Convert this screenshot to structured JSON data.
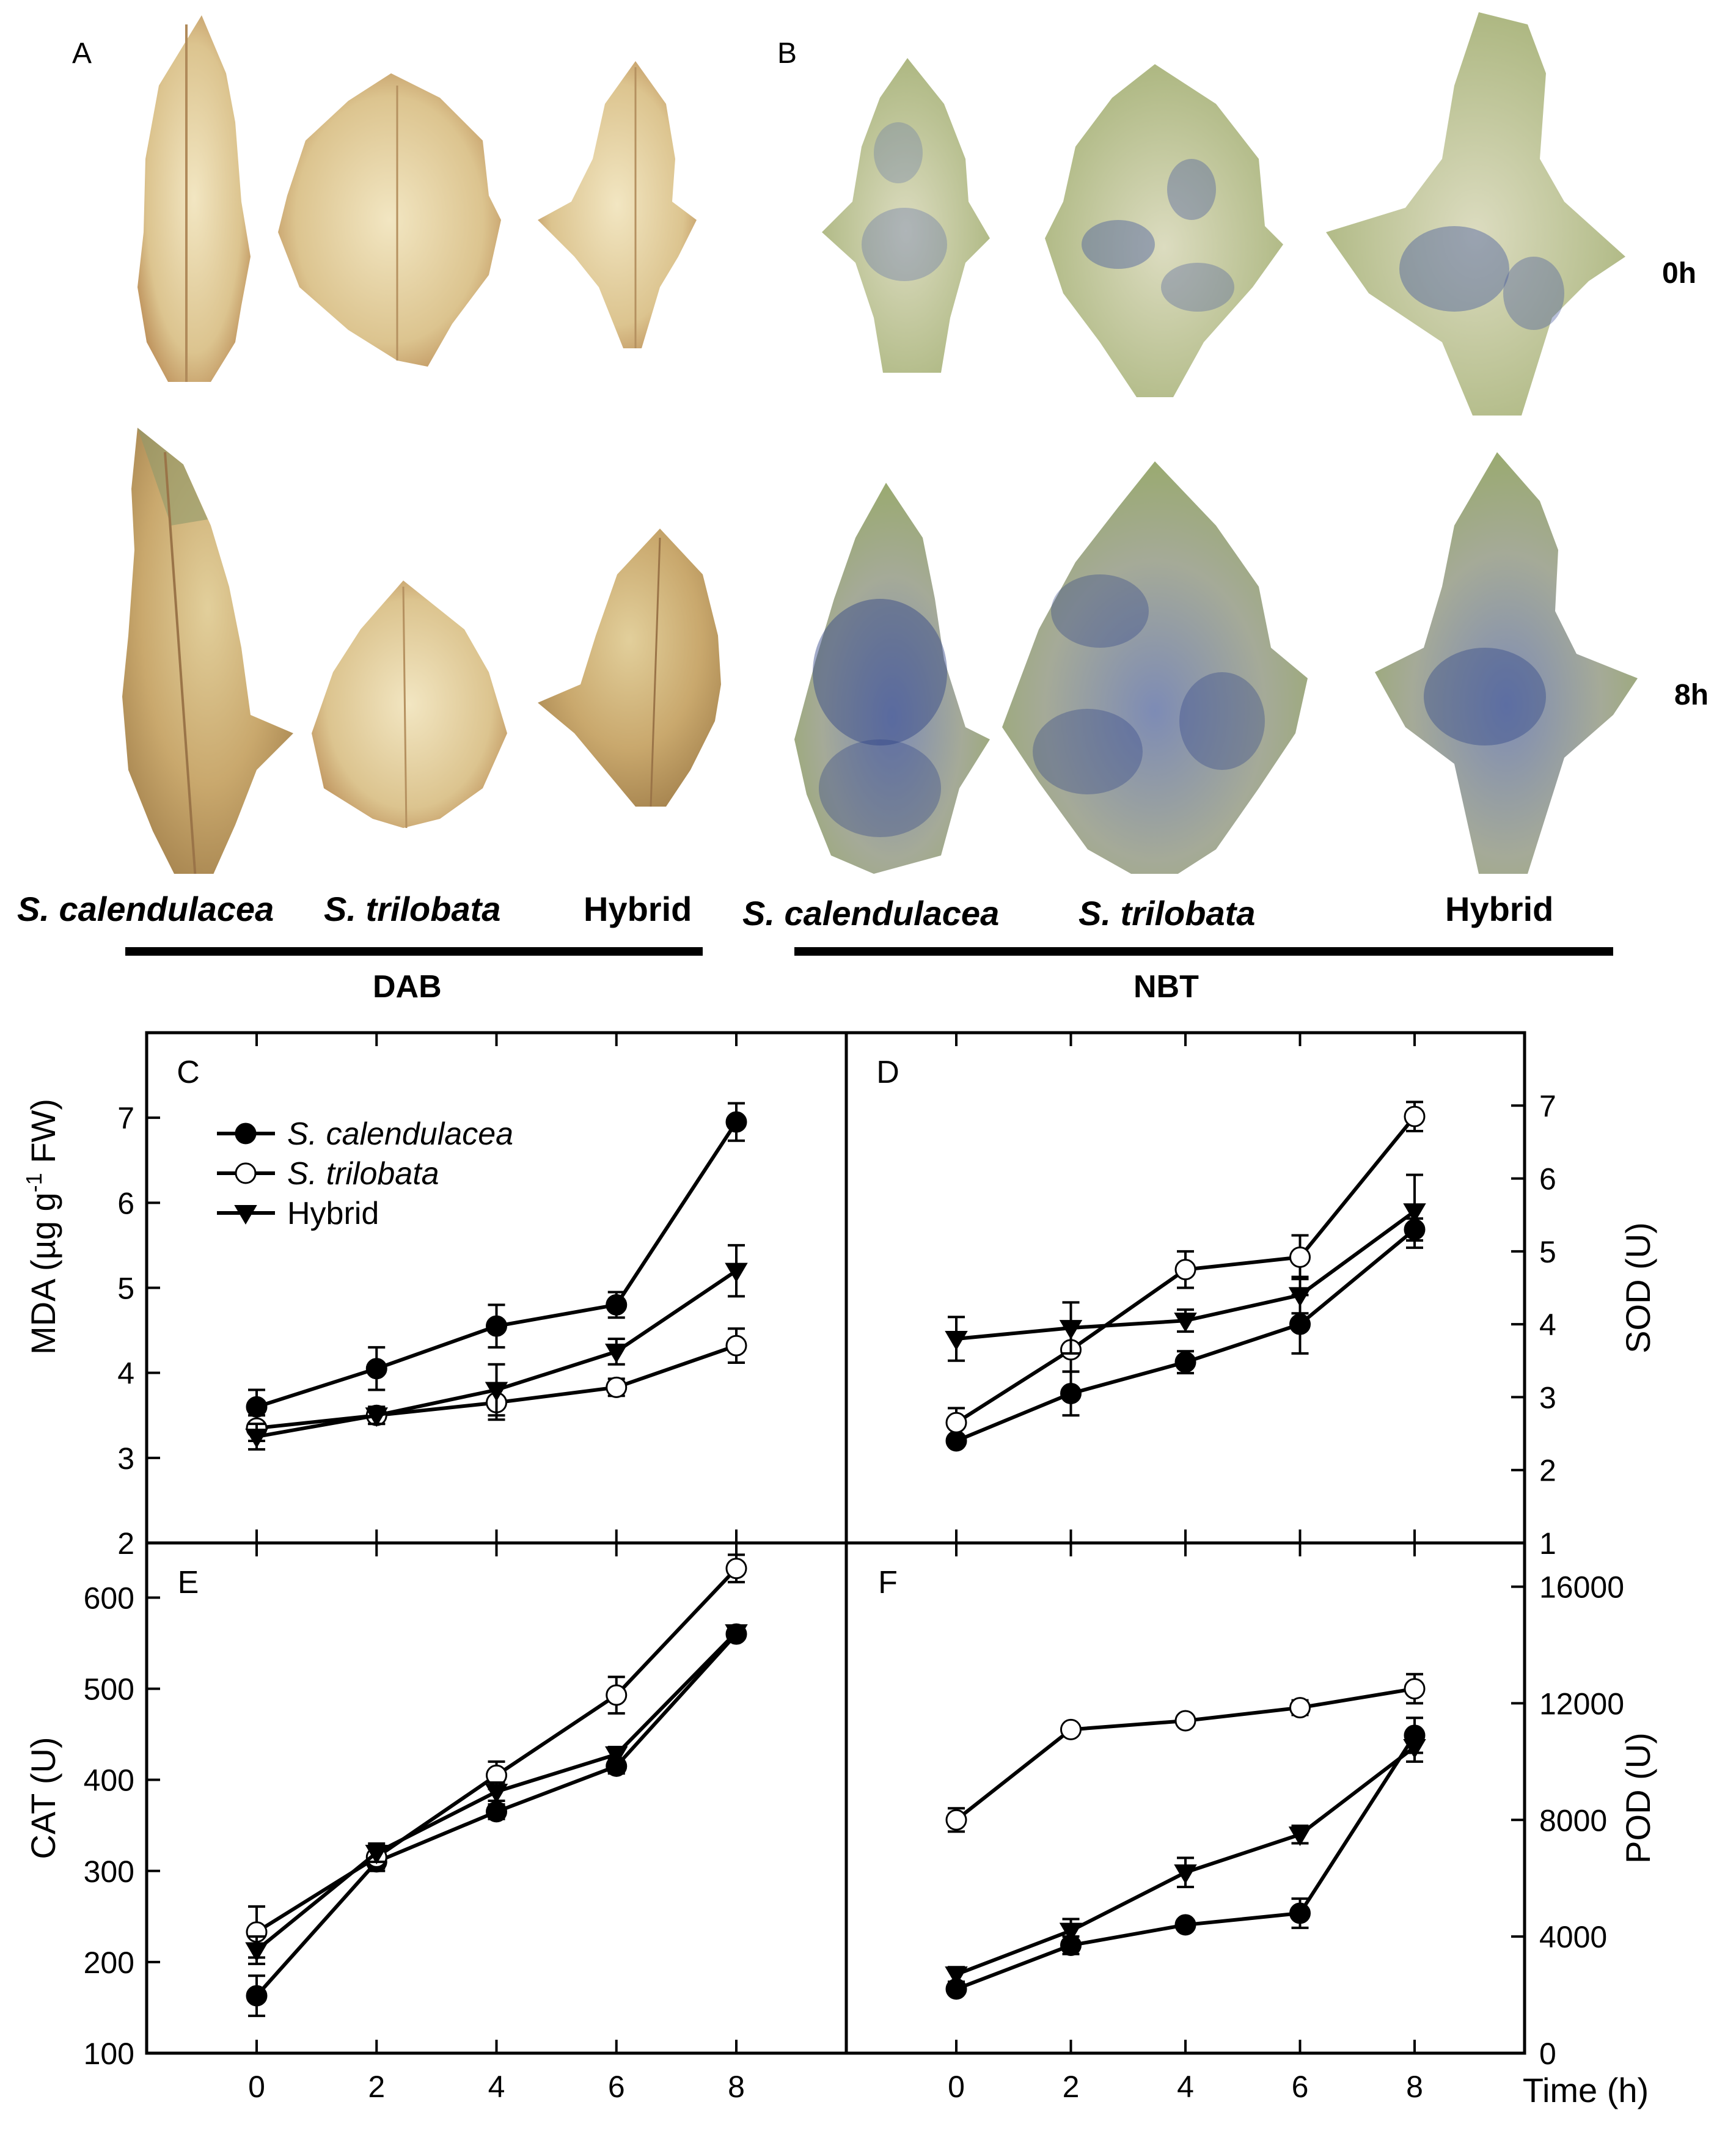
{
  "photos": {
    "panel_a_letter": "A",
    "panel_b_letter": "B",
    "row_top_label": "0h",
    "row_bottom_label": "8h",
    "species_dab": [
      "S. calendulacea",
      "S. trilobata",
      "Hybrid"
    ],
    "species_nbt": [
      "S. calendulacea",
      "S. trilobata",
      "Hybrid"
    ],
    "stain_dab": "DAB",
    "stain_nbt": "NBT",
    "colors": {
      "dab_leaf": "#d9c28e",
      "dab_edge": "#b98a54",
      "nbt_leaf": "#c8c89a",
      "nbt_stain": "#3a4f8f"
    }
  },
  "legend": [
    {
      "label": "S. calendulacea",
      "marker": "filled-circle"
    },
    {
      "label": "S. trilobata",
      "marker": "open-circle"
    },
    {
      "label": "Hybrid",
      "marker": "filled-triangle-down"
    }
  ],
  "chart_data": [
    {
      "type": "line",
      "panel": "C",
      "ylabel": "MDA (µg g-1 FW)",
      "ylabel_main": "MDA (µg g",
      "ylabel_sup": "-1",
      "ylabel_end": " FW)",
      "ylim": [
        2,
        8
      ],
      "yticks": [
        2,
        3,
        4,
        5,
        6,
        7
      ],
      "x": [
        0,
        2,
        4,
        6,
        8
      ],
      "series": [
        {
          "name": "S. calendulacea",
          "values": [
            3.6,
            4.05,
            4.55,
            4.8,
            6.95
          ],
          "errors": [
            0.2,
            0.25,
            0.25,
            0.15,
            0.22
          ]
        },
        {
          "name": "S. trilobata",
          "values": [
            3.35,
            3.5,
            3.65,
            3.83,
            4.32
          ],
          "errors": [
            0.15,
            0.1,
            0.2,
            0.1,
            0.2
          ]
        },
        {
          "name": "Hybrid",
          "values": [
            3.25,
            3.5,
            3.8,
            4.25,
            5.2
          ],
          "errors": [
            0.15,
            0.1,
            0.3,
            0.15,
            0.3
          ]
        }
      ]
    },
    {
      "type": "line",
      "panel": "D",
      "ylabel": "SOD (U)",
      "ylim": [
        1,
        8
      ],
      "yticks": [
        1,
        2,
        3,
        4,
        5,
        6,
        7
      ],
      "x": [
        0,
        2,
        4,
        6,
        8
      ],
      "series": [
        {
          "name": "S. calendulacea",
          "values": [
            2.4,
            3.05,
            3.48,
            4.0,
            5.3
          ],
          "errors": [
            0.05,
            0.3,
            0.15,
            0.4,
            0.15
          ]
        },
        {
          "name": "S. trilobata",
          "values": [
            2.65,
            3.65,
            4.75,
            4.92,
            6.85
          ],
          "errors": [
            0.2,
            0.3,
            0.25,
            0.3,
            0.2
          ]
        },
        {
          "name": "Hybrid",
          "values": [
            3.8,
            3.95,
            4.05,
            4.4,
            5.55
          ],
          "errors": [
            0.3,
            0.35,
            0.15,
            0.25,
            0.5
          ]
        }
      ]
    },
    {
      "type": "line",
      "panel": "E",
      "ylabel": "CAT (U)",
      "ylim": [
        100,
        660
      ],
      "yticks": [
        100,
        200,
        300,
        400,
        500,
        600
      ],
      "x": [
        0,
        2,
        4,
        6,
        8
      ],
      "series": [
        {
          "name": "S. calendulacea",
          "values": [
            163,
            310,
            365,
            415,
            560
          ],
          "errors": [
            22,
            10,
            8,
            8,
            5
          ]
        },
        {
          "name": "S. trilobata",
          "values": [
            233,
            315,
            405,
            493,
            632
          ],
          "errors": [
            28,
            12,
            15,
            20,
            15
          ]
        },
        {
          "name": "Hybrid",
          "values": [
            213,
            320,
            387,
            428,
            562
          ],
          "errors": [
            15,
            10,
            10,
            8,
            5
          ]
        }
      ]
    },
    {
      "type": "line",
      "panel": "F",
      "ylabel": "POD (U)",
      "ylim": [
        0,
        17500
      ],
      "yticks": [
        0,
        4000,
        8000,
        12000,
        16000
      ],
      "x": [
        0,
        2,
        4,
        6,
        8
      ],
      "series": [
        {
          "name": "S. calendulacea",
          "values": [
            2200,
            3700,
            4400,
            4800,
            10900
          ],
          "errors": [
            150,
            300,
            150,
            500,
            600
          ]
        },
        {
          "name": "S. trilobata",
          "values": [
            8000,
            11100,
            11400,
            11850,
            12500
          ],
          "errors": [
            400,
            150,
            150,
            250,
            500
          ]
        },
        {
          "name": "Hybrid",
          "values": [
            2700,
            4200,
            6200,
            7500,
            10500
          ],
          "errors": [
            250,
            400,
            500,
            300,
            500
          ]
        }
      ]
    }
  ],
  "axes": {
    "xticks": [
      0,
      2,
      4,
      6,
      8
    ],
    "xlabel": "Time (h)"
  }
}
